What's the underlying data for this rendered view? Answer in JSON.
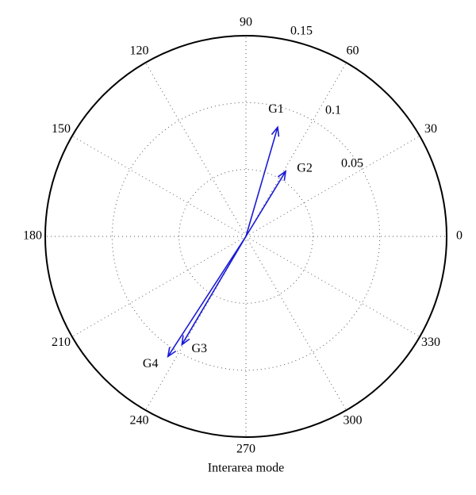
{
  "chart_data": {
    "type": "compass",
    "xlabel": "Interarea mode",
    "rlim": [
      0,
      0.15
    ],
    "rticks": [
      0.05,
      0.1,
      0.15
    ],
    "thetaticks": [
      0,
      30,
      60,
      90,
      120,
      150,
      180,
      210,
      240,
      270,
      300,
      330
    ],
    "grid": true,
    "color": "#1a1ad6",
    "series": [
      {
        "name": "G1",
        "theta": 73.8,
        "r": 0.085
      },
      {
        "name": "G2",
        "theta": 58.6,
        "r": 0.057
      },
      {
        "name": "G3",
        "theta": 239.4,
        "r": 0.094
      },
      {
        "name": "G4",
        "theta": 237,
        "r": 0.107
      }
    ]
  }
}
